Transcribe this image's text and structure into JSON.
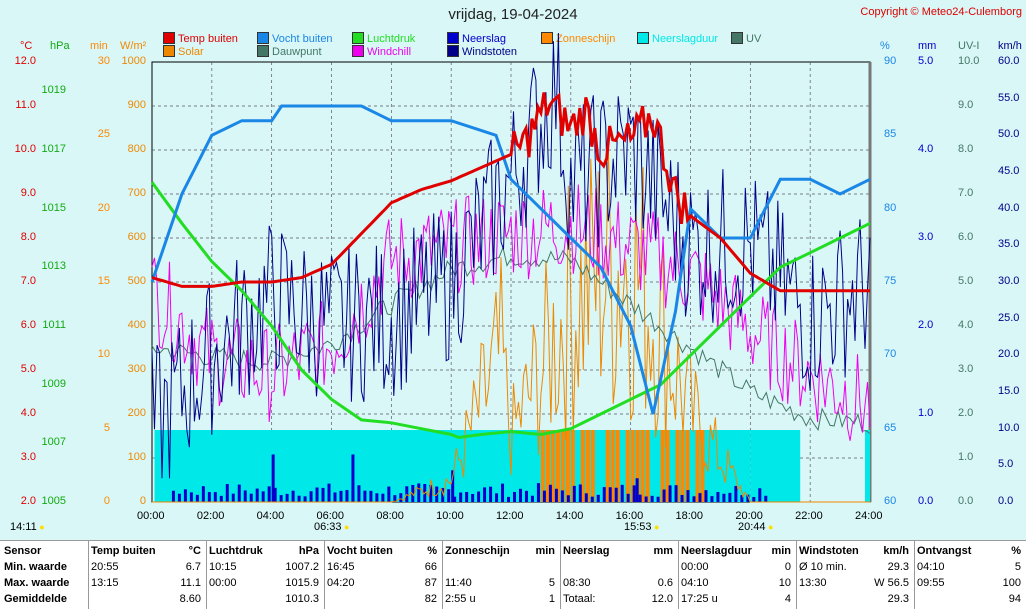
{
  "title": "vrijdag, 19-04-2024",
  "copyright": "Copyright © Meteo24-Culemborg",
  "legend": [
    {
      "label": "Temp buiten",
      "color": "#e00000"
    },
    {
      "label": "Vocht buiten",
      "color": "#1a86e6"
    },
    {
      "label": "Luchtdruk",
      "color": "#22dd22"
    },
    {
      "label": "Neerslag",
      "color": "#0000cc"
    },
    {
      "label": "Zonneschijn",
      "color": "#ff8800"
    },
    {
      "label": "Neerslagduur",
      "color": "#00e8e8"
    },
    {
      "label": "UV",
      "color": "#447766"
    },
    {
      "label": "Solar",
      "color": "#ee8800"
    },
    {
      "label": "Dauwpunt",
      "color": "#447766"
    },
    {
      "label": "Windchill",
      "color": "#ee00ee"
    },
    {
      "label": "Windstoten",
      "color": "#000088"
    }
  ],
  "axes_left": [
    {
      "unit": "°C",
      "color": "#e00000",
      "ticks": [
        "12.0",
        "11.0",
        "10.0",
        "9.0",
        "8.0",
        "7.0",
        "6.0",
        "5.0",
        "4.0",
        "3.0",
        "2.0"
      ]
    },
    {
      "unit": "hPa",
      "color": "#11aa11",
      "ticks": [
        "1019",
        "1017",
        "1015",
        "1013",
        "1011",
        "1009",
        "1007",
        "1005"
      ]
    },
    {
      "unit": "min",
      "color": "#ff8800",
      "ticks": [
        "30",
        "25",
        "20",
        "15",
        "10",
        "5",
        "0"
      ]
    },
    {
      "unit": "W/m²",
      "color": "#ee8800",
      "ticks": [
        "1000",
        "900",
        "800",
        "700",
        "600",
        "500",
        "400",
        "300",
        "200",
        "100",
        "0"
      ]
    }
  ],
  "axes_right": [
    {
      "unit": "%",
      "color": "#1a86e6",
      "ticks": [
        "90",
        "85",
        "80",
        "75",
        "70",
        "65",
        "60"
      ]
    },
    {
      "unit": "mm",
      "color": "#0000cc",
      "ticks": [
        "5.0",
        "4.0",
        "3.0",
        "2.0",
        "1.0",
        "0.0"
      ]
    },
    {
      "unit": "UV-I",
      "color": "#447766",
      "ticks": [
        "10.0",
        "9.0",
        "8.0",
        "7.0",
        "6.0",
        "5.0",
        "4.0",
        "3.0",
        "2.0",
        "1.0",
        "0.0"
      ]
    },
    {
      "unit": "km/h",
      "color": "#000088",
      "ticks": [
        "60.0",
        "55.0",
        "50.0",
        "45.0",
        "40.0",
        "35.0",
        "30.0",
        "25.0",
        "20.0",
        "15.0",
        "10.0",
        "5.0",
        "0.0"
      ]
    }
  ],
  "x_ticks": [
    "00:00",
    "02:00",
    "04:00",
    "06:00",
    "08:00",
    "10:00",
    "12:00",
    "14:00",
    "16:00",
    "18:00",
    "20:00",
    "22:00",
    "24:00"
  ],
  "sun_markers": {
    "sunrise": "06:33",
    "sunset": "20:44",
    "noon": "15:53",
    "moonrise": "14:11"
  },
  "chart_data": {
    "type": "line",
    "x_range": [
      "00:00",
      "24:00"
    ],
    "grid": true,
    "series": [
      {
        "name": "Temp buiten",
        "unit": "°C",
        "x": [
          "00:00",
          "01:00",
          "02:00",
          "03:00",
          "04:00",
          "05:00",
          "06:00",
          "07:00",
          "08:00",
          "09:00",
          "10:00",
          "11:00",
          "12:00",
          "12:30",
          "13:15",
          "14:00",
          "14:30",
          "15:00",
          "16:00",
          "16:45",
          "17:30",
          "18:00",
          "19:00",
          "20:00",
          "21:00",
          "22:00",
          "23:00",
          "24:00"
        ],
        "y": [
          7.1,
          6.9,
          6.9,
          7.0,
          7.0,
          7.1,
          7.4,
          8.1,
          8.8,
          9.1,
          9.3,
          9.6,
          9.9,
          10.2,
          11.1,
          10.5,
          10.9,
          10.0,
          10.2,
          10.8,
          9.0,
          8.5,
          8.0,
          7.2,
          6.8,
          6.8,
          6.8,
          6.8
        ]
      },
      {
        "name": "Vocht buiten",
        "unit": "%",
        "x": [
          "00:00",
          "01:00",
          "02:00",
          "03:00",
          "04:00",
          "04:20",
          "05:00",
          "06:00",
          "07:00",
          "08:00",
          "10:00",
          "11:30",
          "12:00",
          "13:00",
          "14:00",
          "15:00",
          "16:00",
          "16:45",
          "17:30",
          "18:00",
          "19:00",
          "20:00",
          "21:00",
          "22:00",
          "23:00",
          "24:00"
        ],
        "y": [
          75,
          81,
          85,
          86,
          86,
          87,
          87,
          87,
          87,
          86,
          86,
          85,
          82,
          80,
          78,
          76,
          72,
          66,
          73,
          80,
          78,
          78,
          82,
          82,
          81,
          82
        ]
      },
      {
        "name": "Luchtdruk",
        "unit": "hPa",
        "x": [
          "00:00",
          "01:00",
          "02:00",
          "03:00",
          "04:00",
          "05:00",
          "06:00",
          "07:00",
          "08:00",
          "09:00",
          "10:00",
          "10:15",
          "11:00",
          "12:00",
          "13:00",
          "14:00",
          "15:00",
          "16:00",
          "17:00",
          "18:00",
          "19:00",
          "20:00",
          "21:00",
          "22:00",
          "23:00",
          "24:00"
        ],
        "y": [
          1015.9,
          1014.5,
          1013.2,
          1012.2,
          1011.0,
          1009.5,
          1008.5,
          1007.8,
          1007.7,
          1007.5,
          1007.3,
          1007.2,
          1007.3,
          1007.4,
          1007.3,
          1007.5,
          1008.0,
          1008.5,
          1009.0,
          1010.0,
          1011.0,
          1012.0,
          1013.0,
          1013.5,
          1014.0,
          1014.5
        ]
      },
      {
        "name": "Dauwpunt",
        "unit": "°C",
        "x": [
          "00:00",
          "02:00",
          "04:00",
          "06:00",
          "08:00",
          "10:00",
          "12:00",
          "14:00",
          "16:00",
          "18:00",
          "20:00",
          "22:00",
          "24:00"
        ],
        "y": [
          5.5,
          5.3,
          5.2,
          5.6,
          6.5,
          7.3,
          7.6,
          7.5,
          6.5,
          5.5,
          4.5,
          3.9,
          3.8
        ]
      },
      {
        "name": "Windchill",
        "unit": "°C",
        "x": [
          "00:00",
          "02:00",
          "04:00",
          "06:00",
          "08:00",
          "10:00",
          "12:00",
          "14:00",
          "16:00",
          "18:00",
          "20:00",
          "22:00",
          "24:00"
        ],
        "y": [
          6.8,
          5.3,
          4.9,
          5.6,
          7.5,
          7.8,
          8.1,
          8.3,
          7.8,
          7.2,
          5.9,
          4.9,
          4.2
        ]
      },
      {
        "name": "Windstoten",
        "unit": "km/h",
        "x": [
          "00:00",
          "02:00",
          "04:00",
          "06:00",
          "08:00",
          "10:00",
          "12:00",
          "13:30",
          "14:00",
          "16:00",
          "18:00",
          "20:00",
          "22:00",
          "24:00"
        ],
        "y": [
          10.0,
          20.0,
          28.0,
          24.0,
          25.0,
          30.0,
          44.0,
          56.5,
          43.0,
          48.0,
          35.0,
          35.0,
          25.0,
          30.0
        ]
      },
      {
        "name": "Neerslag",
        "unit": "mm",
        "x": [
          "00:00",
          "04:00",
          "08:30",
          "12:00",
          "16:00",
          "20:00",
          "24:00"
        ],
        "y": [
          0.0,
          0.2,
          0.6,
          0.3,
          0.3,
          0.3,
          0.0
        ]
      },
      {
        "name": "Solar",
        "unit": "W/m²",
        "x": [
          "00:00",
          "06:00",
          "08:00",
          "10:00",
          "11:40",
          "12:00",
          "13:00",
          "14:00",
          "15:00",
          "16:00",
          "17:00",
          "18:00",
          "20:00",
          "24:00"
        ],
        "y": [
          0,
          0,
          0,
          50,
          330,
          150,
          300,
          450,
          520,
          550,
          400,
          200,
          0,
          0
        ]
      }
    ]
  },
  "stats": {
    "rows": [
      "Sensor",
      "Min. waarde",
      "Max. waarde",
      "Gemiddelde"
    ],
    "columns": [
      {
        "header": "Temp buiten",
        "unit": "°C",
        "values": [
          [
            "20:55",
            "6.7"
          ],
          [
            "13:15",
            "11.1"
          ],
          [
            "",
            "8.60"
          ]
        ]
      },
      {
        "header": "Luchtdruk",
        "unit": "hPa",
        "values": [
          [
            "10:15",
            "1007.2"
          ],
          [
            "00:00",
            "1015.9"
          ],
          [
            "",
            "1010.3"
          ]
        ]
      },
      {
        "header": "Vocht buiten",
        "unit": "%",
        "values": [
          [
            "16:45",
            "66"
          ],
          [
            "04:20",
            "87"
          ],
          [
            "",
            "82"
          ]
        ]
      },
      {
        "header": "Zonneschijn",
        "unit": "min",
        "values": [
          [
            "",
            ""
          ],
          [
            "11:40",
            "5"
          ],
          [
            "2:55 u",
            "1"
          ]
        ]
      },
      {
        "header": "Neerslag",
        "unit": "mm",
        "values": [
          [
            "",
            ""
          ],
          [
            "08:30",
            "0.6"
          ],
          [
            "Totaal:",
            "12.0"
          ]
        ]
      },
      {
        "header": "Neerslagduur",
        "unit": "min",
        "values": [
          [
            "00:00",
            "0"
          ],
          [
            "04:10",
            "10"
          ],
          [
            "17:25 u",
            "4"
          ]
        ]
      },
      {
        "header": "Windstoten",
        "unit": "km/h",
        "values": [
          [
            "Ø 10 min.",
            "29.3"
          ],
          [
            "13:30",
            "W 56.5"
          ],
          [
            "",
            "29.3"
          ]
        ]
      },
      {
        "header": "Ontvangst",
        "unit": "%",
        "values": [
          [
            "04:10",
            "5"
          ],
          [
            "09:55",
            "100"
          ],
          [
            "",
            "94"
          ]
        ]
      }
    ]
  }
}
